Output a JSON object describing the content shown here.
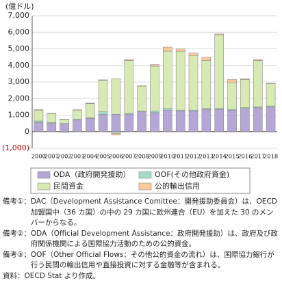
{
  "chart_data": {
    "type": "stacked_bar",
    "unit_label": "(億ドル)",
    "categories": [
      "2000",
      "2001",
      "2002",
      "2003",
      "2004",
      "2005",
      "2006",
      "2007",
      "2008",
      "2009",
      "2010",
      "2011",
      "2012",
      "2013",
      "2014",
      "2015",
      "2016",
      "2017",
      "2018"
    ],
    "series": [
      {
        "name": "ODA（政府開発援助）",
        "color": "#b4a7d6",
        "values": [
          550,
          500,
          500,
          700,
          800,
          1050,
          1050,
          1050,
          1200,
          1150,
          1300,
          1250,
          1250,
          1350,
          1350,
          1300,
          1400,
          1450,
          1500
        ]
      },
      {
        "name": "OOF(その他政府資金)",
        "color": "#a2dcc8",
        "values": [
          100,
          50,
          -50,
          50,
          50,
          150,
          -100,
          50,
          50,
          100,
          100,
          50,
          50,
          50,
          50,
          50,
          50,
          50,
          50
        ]
      },
      {
        "name": "民間資金",
        "color": "#d8eab3",
        "values": [
          650,
          550,
          250,
          550,
          850,
          1900,
          2150,
          3200,
          1500,
          2700,
          3450,
          3550,
          3300,
          2900,
          4450,
          1600,
          1700,
          2800,
          1350
        ]
      },
      {
        "name": "公的輸出信用",
        "color": "#f9c89b",
        "values": [
          30,
          20,
          10,
          20,
          20,
          30,
          -100,
          50,
          20,
          100,
          250,
          150,
          150,
          200,
          50,
          200,
          50,
          50,
          20
        ]
      }
    ],
    "ylim": [
      -1000,
      7000
    ],
    "yticks": [
      {
        "value": -1000,
        "label": "(1,000)"
      },
      0,
      {
        "value": 1000,
        "label": "1,000"
      },
      {
        "value": 2000,
        "label": "2,000"
      },
      {
        "value": 3000,
        "label": "3,000"
      },
      {
        "value": 4000,
        "label": "4,000"
      },
      {
        "value": 5000,
        "label": "5,000"
      },
      {
        "value": 6000,
        "label": "6,000"
      },
      {
        "value": 7000,
        "label": "7,000"
      }
    ],
    "grid": true,
    "legend": "bottom"
  },
  "notes": [
    {
      "label": "備考①：",
      "text": "DAC（Development Assistance Comittee：開発援助委員会）は、OECD 加盟国中（36 カ国）の中の 29 カ国に欧州連合（EU）を加えた 30 のメンバーからなる。"
    },
    {
      "label": "備考②：",
      "text": "ODA（Official Development Assistance：政府開発援助）は、政府及び政府関係機関による国際協力活動のための公的資金。"
    },
    {
      "label": "備考③：",
      "text": "OOF（Other Official Flows：その他公的資金の流れ）は、国際協力銀行が行う民間の輸出信用や直接投資に対する金融等が含まれる。"
    }
  ],
  "source": "資料：OECD Stat より作成。"
}
